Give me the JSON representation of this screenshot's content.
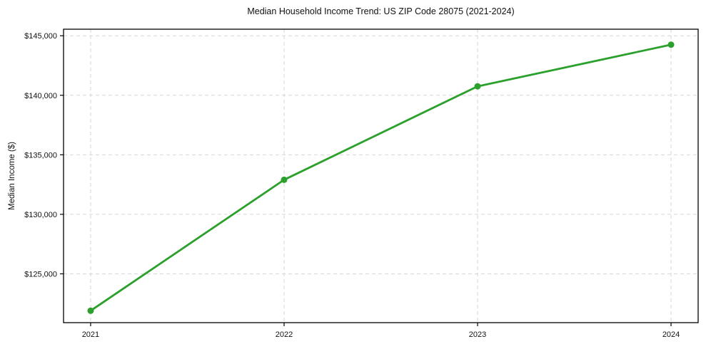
{
  "chart_data": {
    "type": "line",
    "title": "Median Household Income Trend: US ZIP Code 28075 (2021-2024)",
    "xlabel": "",
    "ylabel": "Median Income ($)",
    "x": [
      2021,
      2022,
      2023,
      2024
    ],
    "x_tick_labels": [
      "2021",
      "2022",
      "2023",
      "2024"
    ],
    "series": [
      {
        "values": [
          121900,
          132900,
          140750,
          144250
        ],
        "color": "#2ca02c",
        "marker": "circle",
        "marker_radius": 4.5,
        "line_width": 2.8
      }
    ],
    "y_ticks": [
      125000,
      130000,
      135000,
      140000,
      145000
    ],
    "y_tick_labels": [
      "$125,000",
      "$130,000",
      "$135,000",
      "$140,000",
      "$145,000"
    ],
    "xlim": [
      2020.86,
      2024.14
    ],
    "ylim": [
      120900,
      145550
    ],
    "grid": true,
    "grid_line_style": "dashed",
    "legend": "none",
    "grid_color": "#d6d6d6",
    "axis_color": "#000000",
    "text_color": "#111111",
    "background_color": "#ffffff"
  }
}
